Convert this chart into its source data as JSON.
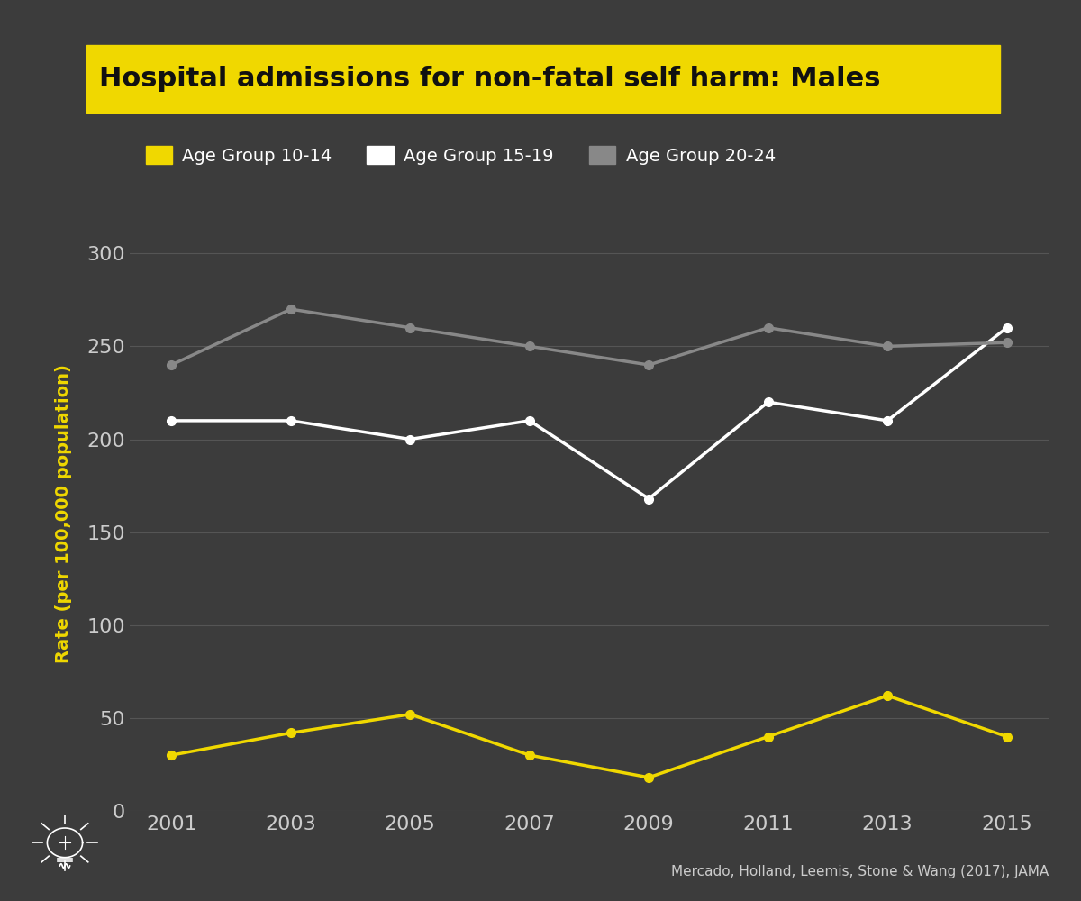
{
  "title": "Hospital admissions for non-fatal self harm: Males",
  "title_bg_color": "#f0d800",
  "title_text_color": "#111111",
  "background_color": "#3c3c3c",
  "plot_bg_color": "#3c3c3c",
  "ylabel": "Rate (per 100,000 population)",
  "ylabel_color": "#f0d800",
  "citation": "Mercado, Holland, Leemis, Stone & Wang (2017), JAMA",
  "years": [
    2001,
    2003,
    2005,
    2007,
    2009,
    2011,
    2013,
    2015
  ],
  "series": [
    {
      "label": "Age Group 10-14",
      "color": "#f0d800",
      "values": [
        30,
        42,
        52,
        30,
        18,
        40,
        62,
        40
      ],
      "marker": "o",
      "linewidth": 2.5
    },
    {
      "label": "Age Group 15-19",
      "color": "#ffffff",
      "values": [
        210,
        210,
        200,
        210,
        168,
        220,
        210,
        260
      ],
      "marker": "o",
      "linewidth": 2.5
    },
    {
      "label": "Age Group 20-24",
      "color": "#888888",
      "values": [
        240,
        270,
        260,
        250,
        240,
        260,
        250,
        252
      ],
      "marker": "o",
      "linewidth": 2.5
    }
  ],
  "ylim": [
    0,
    320
  ],
  "yticks": [
    0,
    50,
    100,
    150,
    200,
    250,
    300
  ],
  "xticks": [
    2001,
    2003,
    2005,
    2007,
    2009,
    2011,
    2013,
    2015
  ],
  "grid_color": "#555555",
  "tick_color": "#cccccc",
  "tick_fontsize": 16,
  "ylabel_fontsize": 14,
  "legend_fontsize": 14,
  "figsize": [
    12,
    10
  ]
}
